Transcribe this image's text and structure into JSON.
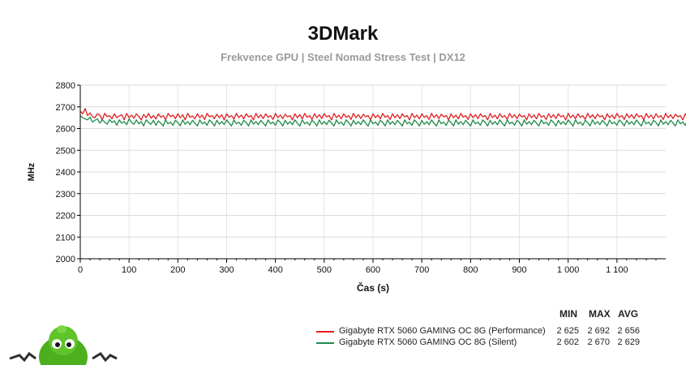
{
  "chart_data": {
    "type": "line",
    "title": "3DMark",
    "subtitle": "Frekvence GPU | Steel Nomad Stress Test | DX12",
    "xlabel": "Čas (s)",
    "ylabel": "MHz",
    "xlim": [
      0,
      1200
    ],
    "ylim": [
      2000,
      2800
    ],
    "x_ticks": [
      0,
      100,
      200,
      300,
      400,
      500,
      600,
      700,
      800,
      900,
      1000,
      1100
    ],
    "x_tick_labels": [
      "0",
      "100",
      "200",
      "300",
      "400",
      "500",
      "600",
      "700",
      "800",
      "900",
      "1 000",
      "1 100"
    ],
    "y_ticks": [
      2000,
      2100,
      2200,
      2300,
      2400,
      2500,
      2600,
      2700,
      2800
    ],
    "grid": true,
    "legend_placement": "bottom-right",
    "stat_headers": [
      "MIN",
      "MAX",
      "AVG"
    ],
    "series": [
      {
        "name": "Gigabyte RTX 5060 GAMING OC 8G (Performance)",
        "color": "#e02020",
        "min": "2 625",
        "max": "2 692",
        "avg": "2 656",
        "x_step": 5,
        "values": [
          2680,
          2668,
          2692,
          2660,
          2672,
          2655,
          2650,
          2668,
          2662,
          2640,
          2670,
          2655,
          2660,
          2645,
          2668,
          2650,
          2658,
          2664,
          2640,
          2670,
          2650,
          2662,
          2648,
          2668,
          2655,
          2640,
          2665,
          2650,
          2670,
          2648,
          2660,
          2644,
          2668,
          2652,
          2660,
          2640,
          2670,
          2655,
          2662,
          2646,
          2668,
          2650,
          2664,
          2640,
          2670,
          2652,
          2658,
          2645,
          2668,
          2650,
          2662,
          2642,
          2670,
          2654,
          2660,
          2646,
          2666,
          2650,
          2664,
          2640,
          2668,
          2652,
          2660,
          2644,
          2670,
          2650,
          2662,
          2645,
          2668,
          2654,
          2660,
          2640,
          2670,
          2650,
          2664,
          2646,
          2668,
          2652,
          2660,
          2642,
          2670,
          2650,
          2662,
          2646,
          2666,
          2654,
          2660,
          2640,
          2668,
          2650,
          2664,
          2645,
          2670,
          2652,
          2660,
          2642,
          2668,
          2650,
          2664,
          2646,
          2668,
          2654,
          2660,
          2640,
          2670,
          2650,
          2662,
          2645,
          2668,
          2652,
          2660,
          2642,
          2670,
          2650,
          2664,
          2646,
          2666,
          2654,
          2660,
          2640,
          2668,
          2650,
          2662,
          2645,
          2670,
          2652,
          2660,
          2642,
          2668,
          2650,
          2664,
          2646,
          2668,
          2654,
          2660,
          2640,
          2670,
          2650,
          2662,
          2645,
          2668,
          2652,
          2660,
          2642,
          2670,
          2650,
          2664,
          2646,
          2666,
          2654,
          2660,
          2640,
          2668,
          2650,
          2662,
          2645,
          2670,
          2652,
          2660,
          2642,
          2668,
          2650,
          2664,
          2646,
          2668,
          2654,
          2660,
          2640,
          2670,
          2650,
          2662,
          2645,
          2668,
          2652,
          2660,
          2642,
          2670,
          2650,
          2664,
          2646,
          2666,
          2654,
          2660,
          2640,
          2668,
          2650,
          2662,
          2645,
          2670,
          2652,
          2660,
          2642,
          2668,
          2650,
          2664,
          2646,
          2668,
          2654,
          2660,
          2640,
          2670,
          2650,
          2662,
          2645,
          2668,
          2652,
          2660,
          2642,
          2670,
          2650,
          2664,
          2646,
          2666,
          2654,
          2660,
          2640,
          2668,
          2650,
          2662,
          2645,
          2670,
          2652,
          2660,
          2642,
          2668,
          2650,
          2664,
          2646,
          2668,
          2654,
          2660,
          2640,
          2670,
          2650,
          2662,
          2645,
          2668,
          2652,
          2660,
          2642,
          2670,
          2650,
          2664,
          2646,
          2666,
          2654,
          2660,
          2640,
          2668,
          2650,
          2662,
          2645,
          2670,
          2652,
          2660,
          2642,
          2668
        ]
      },
      {
        "name": "Gigabyte RTX 5060 GAMING OC 8G (Silent)",
        "color": "#1f8a4c",
        "min": "2 602",
        "max": "2 670",
        "avg": "2 629",
        "x_step": 5,
        "values": [
          2660,
          2650,
          2645,
          2640,
          2652,
          2630,
          2638,
          2645,
          2625,
          2640,
          2630,
          2620,
          2642,
          2628,
          2635,
          2615,
          2640,
          2625,
          2632,
          2618,
          2645,
          2628,
          2620,
          2640,
          2622,
          2632,
          2612,
          2640,
          2628,
          2620,
          2638,
          2615,
          2635,
          2625,
          2612,
          2640,
          2622,
          2630,
          2615,
          2638,
          2628,
          2612,
          2640,
          2620,
          2632,
          2618,
          2638,
          2625,
          2612,
          2640,
          2622,
          2630,
          2615,
          2640,
          2628,
          2612,
          2638,
          2620,
          2632,
          2618,
          2640,
          2625,
          2612,
          2640,
          2622,
          2630,
          2615,
          2638,
          2628,
          2612,
          2640,
          2620,
          2632,
          2618,
          2638,
          2625,
          2612,
          2640,
          2622,
          2630,
          2615,
          2640,
          2628,
          2612,
          2638,
          2620,
          2632,
          2618,
          2640,
          2625,
          2612,
          2640,
          2622,
          2630,
          2615,
          2638,
          2628,
          2612,
          2640,
          2620,
          2632,
          2618,
          2638,
          2625,
          2612,
          2640,
          2622,
          2630,
          2615,
          2640,
          2628,
          2612,
          2638,
          2620,
          2632,
          2618,
          2640,
          2625,
          2612,
          2640,
          2622,
          2630,
          2615,
          2638,
          2628,
          2612,
          2640,
          2620,
          2632,
          2618,
          2638,
          2625,
          2612,
          2640,
          2622,
          2630,
          2615,
          2640,
          2628,
          2612,
          2638,
          2620,
          2632,
          2618,
          2640,
          2625,
          2612,
          2640,
          2622,
          2630,
          2615,
          2638,
          2628,
          2612,
          2640,
          2620,
          2632,
          2618,
          2638,
          2625,
          2612,
          2640,
          2622,
          2630,
          2615,
          2640,
          2628,
          2612,
          2638,
          2620,
          2632,
          2618,
          2640,
          2625,
          2612,
          2640,
          2622,
          2630,
          2615,
          2638,
          2628,
          2612,
          2640,
          2620,
          2632,
          2618,
          2638,
          2625,
          2612,
          2640,
          2622,
          2630,
          2615,
          2640,
          2628,
          2612,
          2638,
          2620,
          2632,
          2618,
          2640,
          2625,
          2612,
          2640,
          2622,
          2630,
          2615,
          2638,
          2628,
          2612,
          2640,
          2620,
          2632,
          2618,
          2638,
          2625,
          2612,
          2640,
          2622,
          2630,
          2615,
          2640,
          2628,
          2612,
          2638,
          2620,
          2632,
          2618,
          2640,
          2625,
          2612,
          2640,
          2622,
          2630,
          2615,
          2638,
          2628,
          2612,
          2640,
          2620,
          2632,
          2618,
          2638,
          2625,
          2612,
          2640,
          2622,
          2630,
          2615,
          2640
        ]
      }
    ]
  }
}
